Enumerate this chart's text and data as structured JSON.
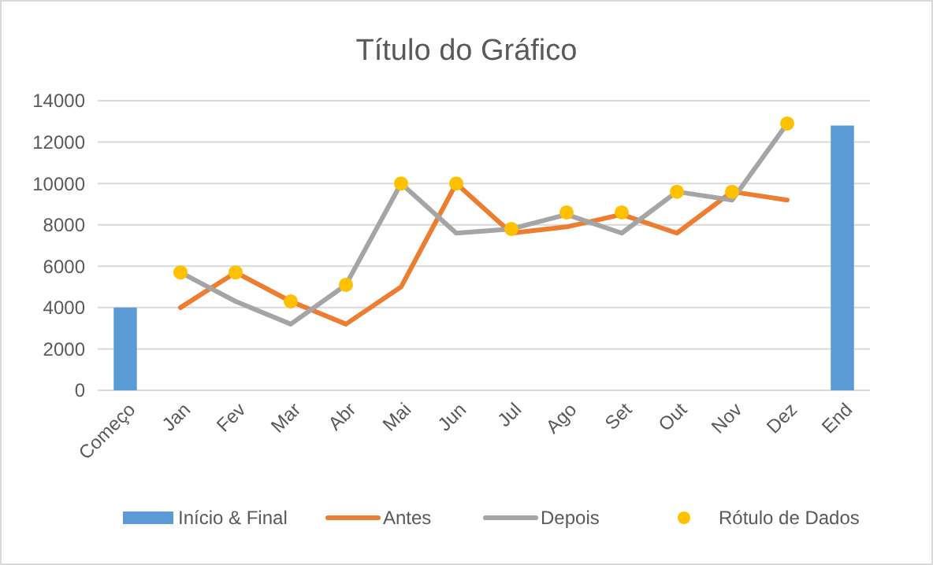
{
  "chart_data": {
    "type": "bar",
    "title": "Título do Gráfico",
    "categories": [
      "Começo",
      "Jan",
      "Fev",
      "Mar",
      "Abr",
      "Mai",
      "Jun",
      "Jul",
      "Ago",
      "Set",
      "Out",
      "Nov",
      "Dez",
      "End"
    ],
    "series": [
      {
        "name": "Início & Final",
        "color": "#5b9bd5",
        "values": [
          4000,
          null,
          null,
          null,
          null,
          null,
          null,
          null,
          null,
          null,
          null,
          null,
          null,
          12800
        ]
      },
      {
        "name": "Antes",
        "type": "line",
        "color": "#ed7d31",
        "values": [
          null,
          4000,
          5700,
          4300,
          3200,
          5000,
          10000,
          7600,
          7900,
          8500,
          7600,
          9600,
          9200,
          null
        ]
      },
      {
        "name": "Depois",
        "type": "line",
        "color": "#a5a5a5",
        "values": [
          null,
          5700,
          4300,
          3200,
          5100,
          10000,
          7600,
          7800,
          8500,
          7600,
          9600,
          9200,
          12900,
          null
        ]
      },
      {
        "name": "Rótulo de Dados",
        "type": "scatter",
        "marker": "circle",
        "color": "#ffc000",
        "values": [
          null,
          5700,
          5700,
          4300,
          5100,
          10000,
          10000,
          7800,
          8600,
          8600,
          9600,
          9600,
          12900,
          null
        ]
      }
    ],
    "ylim": [
      0,
      14000
    ],
    "yticks": [
      0,
      2000,
      4000,
      6000,
      8000,
      10000,
      12000,
      14000
    ],
    "grid": "y",
    "legend": "bottom"
  }
}
